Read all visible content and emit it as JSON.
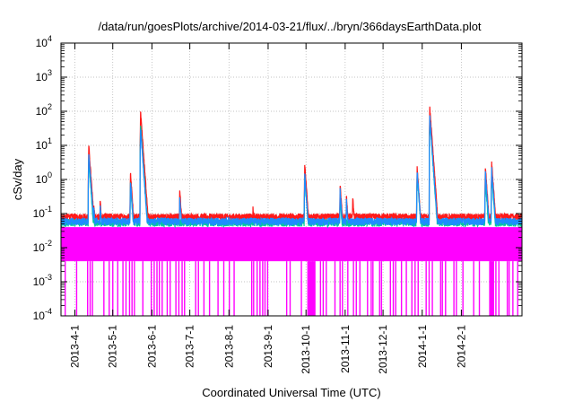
{
  "chart_data": {
    "type": "line",
    "title": "/data/run/goesPlots/archive/2014-03-21/flux/../bryn/366daysEarthData.plot",
    "xlabel": "Coordinated Universal Time (UTC)",
    "ylabel": "cSv/day",
    "yscale": "log",
    "ylim": [
      0.0001,
      10000
    ],
    "xlim": [
      "2013-03-21",
      "2014-03-21"
    ],
    "y_ticks": [
      {
        "base": "10",
        "exp": "-4"
      },
      {
        "base": "10",
        "exp": "-3"
      },
      {
        "base": "10",
        "exp": "-2"
      },
      {
        "base": "10",
        "exp": "-1"
      },
      {
        "base": "10",
        "exp": "0"
      },
      {
        "base": "10",
        "exp": "1"
      },
      {
        "base": "10",
        "exp": "2"
      },
      {
        "base": "10",
        "exp": "3"
      },
      {
        "base": "10",
        "exp": "4"
      }
    ],
    "x_ticks": [
      "2013-4-1",
      "2013-5-1",
      "2013-6-1",
      "2013-7-1",
      "2013-8-1",
      "2013-9-1",
      "2013-10-1",
      "2013-11-1",
      "2013-12-1",
      "2014-1-1",
      "2014-2-1"
    ],
    "grid": true,
    "legend": "none",
    "colors": [
      "#ff1a1a",
      "#00c8a0",
      "#1e8cff",
      "#ff00ff"
    ],
    "series": [
      {
        "color": "#ff1a1a",
        "base": 0.08,
        "events": [
          {
            "x": "2013-04-12",
            "y": 10
          },
          {
            "x": "2013-04-16",
            "y": 0.2
          },
          {
            "x": "2013-04-21",
            "y": 0.25
          },
          {
            "x": "2013-05-15",
            "y": 1.6
          },
          {
            "x": "2013-05-23",
            "y": 100
          },
          {
            "x": "2013-06-23",
            "y": 0.5
          },
          {
            "x": "2013-08-20",
            "y": 0.15
          },
          {
            "x": "2013-09-30",
            "y": 2.8
          },
          {
            "x": "2013-10-28",
            "y": 0.7
          },
          {
            "x": "2013-11-02",
            "y": 0.35
          },
          {
            "x": "2013-11-07",
            "y": 0.3
          },
          {
            "x": "2013-12-28",
            "y": 2.2
          },
          {
            "x": "2014-01-07",
            "y": 140
          },
          {
            "x": "2014-02-20",
            "y": 2.4
          },
          {
            "x": "2014-02-25",
            "y": 3.2
          }
        ]
      },
      {
        "color": "#00c8a0",
        "base": 0.055,
        "events": [
          {
            "x": "2013-04-12",
            "y": 4
          },
          {
            "x": "2013-05-15",
            "y": 0.8
          },
          {
            "x": "2013-05-23",
            "y": 40
          },
          {
            "x": "2013-09-30",
            "y": 1.2
          },
          {
            "x": "2013-10-28",
            "y": 0.3
          },
          {
            "x": "2013-12-28",
            "y": 1.5
          },
          {
            "x": "2014-01-07",
            "y": 60
          },
          {
            "x": "2014-02-20",
            "y": 1.0
          },
          {
            "x": "2014-02-25",
            "y": 1.5
          }
        ]
      },
      {
        "color": "#1e8cff",
        "base": 0.06,
        "events": [
          {
            "x": "2013-04-12",
            "y": 6
          },
          {
            "x": "2013-04-16",
            "y": 0.15
          },
          {
            "x": "2013-04-21",
            "y": 0.18
          },
          {
            "x": "2013-05-15",
            "y": 0.9
          },
          {
            "x": "2013-05-23",
            "y": 30
          },
          {
            "x": "2013-06-23",
            "y": 0.3
          },
          {
            "x": "2013-09-30",
            "y": 1.5
          },
          {
            "x": "2013-10-28",
            "y": 0.5
          },
          {
            "x": "2013-11-02",
            "y": 0.25
          },
          {
            "x": "2013-12-28",
            "y": 1.8
          },
          {
            "x": "2014-01-07",
            "y": 70
          },
          {
            "x": "2014-02-20",
            "y": 1.6
          },
          {
            "x": "2014-02-25",
            "y": 2.0
          }
        ]
      },
      {
        "color": "#ff00ff",
        "band": [
          0.004,
          0.04
        ],
        "dropouts_to_floor": true
      }
    ]
  }
}
